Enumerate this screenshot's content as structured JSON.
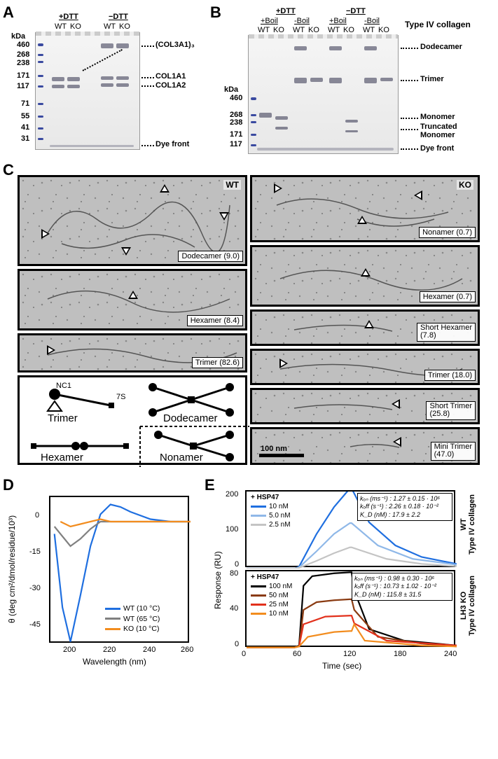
{
  "panels": {
    "A": "A",
    "B": "B",
    "C": "C",
    "D": "D",
    "E": "E"
  },
  "gelA": {
    "conditions": {
      "left": "+DTT",
      "right": "−DTT"
    },
    "lanes": [
      "WT",
      "KO",
      "WT",
      "KO"
    ],
    "markers_label": "kDa",
    "markers": [
      "460",
      "268",
      "238",
      "171",
      "117",
      "71",
      "55",
      "41",
      "31"
    ],
    "band_labels": [
      "(COL3A1)₃",
      "COL1A1",
      "COL1A2",
      "Dye front"
    ]
  },
  "gelB": {
    "conditions_outer": {
      "left": "+DTT",
      "right": "−DTT"
    },
    "conditions_inner": {
      "l1": "+Boil",
      "l2": "-Boil",
      "r1": "+Boil",
      "r2": "-Boil"
    },
    "lanes": [
      "WT",
      "KO",
      "WT",
      "KO",
      "WT",
      "KO",
      "WT",
      "KO"
    ],
    "right_title": "Type IV collagen",
    "markers": [
      "460",
      "268",
      "238",
      "171",
      "117"
    ],
    "markers_label": "kDa",
    "band_labels": [
      "Dodecamer",
      "Trimer",
      "Monomer",
      "Truncated Monomer",
      "Dye front"
    ]
  },
  "panelC": {
    "wt_label": "WT",
    "ko_label": "KO",
    "scale_bar": "100 nm",
    "wt_items": [
      {
        "label": "Dodecamer (9.0)"
      },
      {
        "label": "Hexamer (8.4)"
      },
      {
        "label": "Trimer (82.6)"
      }
    ],
    "ko_items": [
      {
        "label": "Nonamer (0.7)"
      },
      {
        "label": "Hexamer (0.7)"
      },
      {
        "label": "Short Hexamer (7.8)"
      },
      {
        "label": "Trimer (18.0)"
      },
      {
        "label": "Short Trimer (25.8)"
      },
      {
        "label": "Mini Trimer (47.0)"
      }
    ],
    "schematic": {
      "nc1": "NC1",
      "s7": "7S",
      "trimer": "Trimer",
      "dodecamer": "Dodecamer",
      "hexamer": "Hexamer",
      "nonamer": "Nonamer"
    }
  },
  "chartD": {
    "type": "line",
    "xlabel": "Wavelength (nm)",
    "ylabel": "θ (deg cm²/dmol/residue/10³)",
    "xlim": [
      190,
      260
    ],
    "ylim": [
      -50,
      10
    ],
    "xticks": [
      200,
      220,
      240,
      260
    ],
    "yticks": [
      0,
      -15,
      -30,
      -45
    ],
    "series": [
      {
        "name": "WT (10 °C)",
        "color": "#1f6fe0",
        "values": [
          [
            192,
            -5
          ],
          [
            196,
            -35
          ],
          [
            200,
            -49
          ],
          [
            205,
            -30
          ],
          [
            210,
            -10
          ],
          [
            215,
            3
          ],
          [
            220,
            7
          ],
          [
            225,
            6
          ],
          [
            230,
            4
          ],
          [
            240,
            1
          ],
          [
            250,
            0
          ],
          [
            260,
            0
          ]
        ]
      },
      {
        "name": "WT (65 °C)",
        "color": "#808080",
        "values": [
          [
            192,
            -2
          ],
          [
            196,
            -6
          ],
          [
            200,
            -10
          ],
          [
            205,
            -7
          ],
          [
            210,
            -3
          ],
          [
            215,
            0
          ],
          [
            220,
            0
          ],
          [
            230,
            0
          ],
          [
            240,
            0
          ],
          [
            260,
            0
          ]
        ]
      },
      {
        "name": "KO (10 °C)",
        "color": "#f28c1e",
        "values": [
          [
            195,
            0
          ],
          [
            200,
            -2
          ],
          [
            205,
            -1
          ],
          [
            210,
            0
          ],
          [
            215,
            1
          ],
          [
            220,
            0
          ],
          [
            230,
            0
          ],
          [
            260,
            0
          ]
        ]
      }
    ],
    "background": "#ffffff"
  },
  "chartE": {
    "type": "line",
    "xlabel": "Time (sec)",
    "ylabel": "Response (RU)",
    "xlim": [
      0,
      240
    ],
    "xticks": [
      0,
      60,
      120,
      180,
      240
    ],
    "top": {
      "title": "+ HSP47",
      "right_label_top": "WT",
      "right_label_bottom": "Type IV collagen",
      "ylim": [
        0,
        200
      ],
      "yticks": [
        0,
        100,
        200
      ],
      "series": [
        {
          "name": "10 nM",
          "color": "#1f6fe0",
          "values": [
            [
              0,
              0
            ],
            [
              55,
              0
            ],
            [
              60,
              5
            ],
            [
              80,
              90
            ],
            [
              100,
              160
            ],
            [
              118,
              208
            ],
            [
              120,
              208
            ],
            [
              140,
              120
            ],
            [
              170,
              60
            ],
            [
              200,
              30
            ],
            [
              240,
              12
            ]
          ]
        },
        {
          "name": "5.0 nM",
          "color": "#8fb8e8",
          "values": [
            [
              0,
              0
            ],
            [
              55,
              0
            ],
            [
              60,
              3
            ],
            [
              80,
              45
            ],
            [
              100,
              90
            ],
            [
              118,
              118
            ],
            [
              120,
              118
            ],
            [
              150,
              60
            ],
            [
              190,
              25
            ],
            [
              240,
              10
            ]
          ]
        },
        {
          "name": "2.5 nM",
          "color": "#c4c4c4",
          "values": [
            [
              0,
              0
            ],
            [
              55,
              0
            ],
            [
              60,
              2
            ],
            [
              80,
              20
            ],
            [
              100,
              40
            ],
            [
              118,
              55
            ],
            [
              120,
              55
            ],
            [
              160,
              25
            ],
            [
              200,
              12
            ],
            [
              240,
              6
            ]
          ]
        }
      ],
      "info": {
        "kon": "kₒₙ (ms⁻¹)  : 1.27 ± 0.15 · 10⁶",
        "koff": "kₒff (s⁻¹)  : 2.26 ± 0.18 · 10⁻²",
        "kd": "K_D (nM)  : 17.9 ± 2.2"
      }
    },
    "bottom": {
      "title": "+ HSP47",
      "right_label_top": "LH3 KO",
      "right_label_bottom": "Type IV collagen",
      "ylim": [
        0,
        80
      ],
      "yticks": [
        0,
        40,
        80
      ],
      "series": [
        {
          "name": "100 nM",
          "color": "#000000",
          "values": [
            [
              0,
              1
            ],
            [
              55,
              1
            ],
            [
              60,
              3
            ],
            [
              65,
              65
            ],
            [
              75,
              75
            ],
            [
              100,
              78
            ],
            [
              118,
              79
            ],
            [
              120,
              79
            ],
            [
              123,
              60
            ],
            [
              140,
              20
            ],
            [
              180,
              8
            ],
            [
              240,
              3
            ]
          ]
        },
        {
          "name": "50 nM",
          "color": "#8a3b12",
          "values": [
            [
              0,
              1
            ],
            [
              55,
              1
            ],
            [
              60,
              2
            ],
            [
              65,
              40
            ],
            [
              80,
              48
            ],
            [
              100,
              50
            ],
            [
              118,
              51
            ],
            [
              120,
              51
            ],
            [
              123,
              40
            ],
            [
              150,
              12
            ],
            [
              200,
              5
            ],
            [
              240,
              2
            ]
          ]
        },
        {
          "name": "25 nM",
          "color": "#e2301b",
          "values": [
            [
              0,
              1
            ],
            [
              55,
              1
            ],
            [
              60,
              2
            ],
            [
              65,
              25
            ],
            [
              90,
              33
            ],
            [
              118,
              34
            ],
            [
              120,
              34
            ],
            [
              123,
              26
            ],
            [
              160,
              8
            ],
            [
              240,
              3
            ]
          ]
        },
        {
          "name": "10 nM",
          "color": "#f28c1e",
          "values": [
            [
              0,
              1
            ],
            [
              55,
              1
            ],
            [
              60,
              2
            ],
            [
              70,
              12
            ],
            [
              100,
              17
            ],
            [
              118,
              18
            ],
            [
              120,
              18
            ],
            [
              123,
              25
            ],
            [
              135,
              8
            ],
            [
              200,
              3
            ],
            [
              240,
              2
            ]
          ]
        }
      ],
      "info": {
        "kon": "kₒₙ (ms⁻¹)  : 0.98 ± 0.30 · 10⁶",
        "koff": "kₒff (s⁻¹)  : 10.73 ± 1.02 · 10⁻²",
        "kd": "K_D (nM)  : 115.8 ± 31.5"
      }
    }
  }
}
